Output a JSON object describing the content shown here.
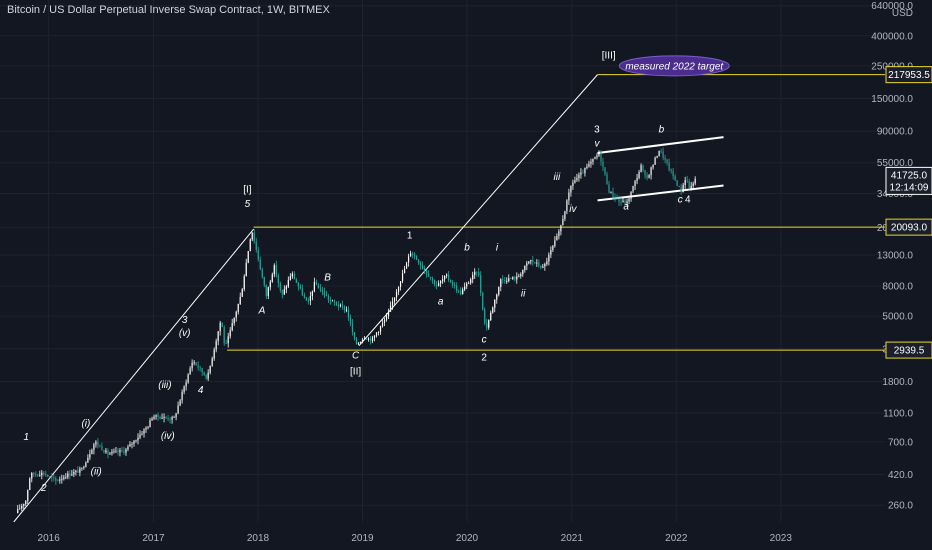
{
  "chart_data": {
    "type": "candlestick",
    "title": "Bitcoin / US Dollar Perpetual Inverse Swap Contract, 1W, BITMEX",
    "y_scale": "log",
    "currency": "USD",
    "ylim": [
      200,
      700000
    ],
    "xlim": [
      "2015-07-15",
      "2023-12-31"
    ],
    "x_ticks": [
      "2016",
      "2017",
      "2018",
      "2019",
      "2020",
      "2021",
      "2022",
      "2023"
    ],
    "y_ticks": [
      "640000.0",
      "400000.0",
      "250000.0",
      "150000.0",
      "90000.0",
      "55000.0",
      "34000.0",
      "20000.0",
      "13000.0",
      "8000.0",
      "5000.0",
      "3000.0",
      "1800.0",
      "1100.0",
      "700.0",
      "420.0",
      "260.0"
    ],
    "price_path": [
      [
        "2015-09-15",
        230
      ],
      [
        "2015-10-20",
        280
      ],
      [
        "2015-11-05",
        420
      ],
      [
        "2015-12-20",
        430
      ],
      [
        "2016-02-01",
        380
      ],
      [
        "2016-03-15",
        420
      ],
      [
        "2016-05-01",
        450
      ],
      [
        "2016-06-18",
        700
      ],
      [
        "2016-08-01",
        580
      ],
      [
        "2016-10-01",
        610
      ],
      [
        "2016-12-20",
        900
      ],
      [
        "2017-01-05",
        1050
      ],
      [
        "2017-03-20",
        1000
      ],
      [
        "2017-05-25",
        2500
      ],
      [
        "2017-07-15",
        1900
      ],
      [
        "2017-09-01",
        4800
      ],
      [
        "2017-09-15",
        3000
      ],
      [
        "2017-11-10",
        7000
      ],
      [
        "2017-12-17",
        19500
      ],
      [
        "2018-02-06",
        6900
      ],
      [
        "2018-03-05",
        11000
      ],
      [
        "2018-04-01",
        6800
      ],
      [
        "2018-05-05",
        9800
      ],
      [
        "2018-07-01",
        6000
      ],
      [
        "2018-07-25",
        8400
      ],
      [
        "2018-09-15",
        6400
      ],
      [
        "2018-11-14",
        5500
      ],
      [
        "2018-12-15",
        3200
      ],
      [
        "2019-01-15",
        3600
      ],
      [
        "2019-02-10",
        3450
      ],
      [
        "2019-04-05",
        5000
      ],
      [
        "2019-06-26",
        13800
      ],
      [
        "2019-08-15",
        10200
      ],
      [
        "2019-09-25",
        8000
      ],
      [
        "2019-10-27",
        9400
      ],
      [
        "2019-12-15",
        7100
      ],
      [
        "2020-02-15",
        10400
      ],
      [
        "2020-03-13",
        4000
      ],
      [
        "2020-05-05",
        8800
      ],
      [
        "2020-07-01",
        9100
      ],
      [
        "2020-08-15",
        12000
      ],
      [
        "2020-10-01",
        10600
      ],
      [
        "2020-11-25",
        18500
      ],
      [
        "2021-01-08",
        40000
      ],
      [
        "2021-02-10",
        46000
      ],
      [
        "2021-04-14",
        64000
      ],
      [
        "2021-05-19",
        35000
      ],
      [
        "2021-06-22",
        30000
      ],
      [
        "2021-07-20",
        29500
      ],
      [
        "2021-09-07",
        52000
      ],
      [
        "2021-09-25",
        42000
      ],
      [
        "2021-11-10",
        68000
      ],
      [
        "2022-01-24",
        35000
      ],
      [
        "2022-02-10",
        44000
      ],
      [
        "2022-02-24",
        36000
      ],
      [
        "2022-03-10",
        41725
      ]
    ],
    "horizontal_levels": [
      {
        "value": 217953.5,
        "label": "217953.5",
        "from": "2021-04-01"
      },
      {
        "value": 20093.0,
        "label": "20093.0",
        "from": "2017-12-17"
      },
      {
        "value": 2939.5,
        "label": "2939.5",
        "from": "2017-09-15"
      }
    ],
    "current_price": {
      "value": 41725.0,
      "label": "41725.0",
      "countdown": "12:14:09"
    },
    "trend_lines": [
      [
        [
          "2015-09-01",
          200
        ],
        [
          "2017-12-17",
          19500
        ]
      ],
      [
        [
          "2018-12-20",
          3150
        ],
        [
          "2021-04-01",
          217953.5
        ]
      ]
    ],
    "channel_lines": [
      [
        [
          "2021-04-01",
          64000
        ],
        [
          "2022-06-15",
          82000
        ]
      ],
      [
        [
          "2021-04-01",
          30500
        ],
        [
          "2022-06-15",
          38500
        ]
      ]
    ],
    "wave_labels": [
      {
        "text": "1",
        "x": "2015-10-15",
        "y": 720,
        "style": "italic"
      },
      {
        "text": "2",
        "x": "2015-12-15",
        "y": 325,
        "style": "italic"
      },
      {
        "text": "(i)",
        "x": "2016-05-10",
        "y": 890,
        "style": "italic"
      },
      {
        "text": "(ii)",
        "x": "2016-06-15",
        "y": 420,
        "style": "italic"
      },
      {
        "text": "(iii)",
        "x": "2017-02-10",
        "y": 1620,
        "style": "italic"
      },
      {
        "text": "(iv)",
        "x": "2017-02-20",
        "y": 730,
        "style": "italic"
      },
      {
        "text": "3",
        "x": "2017-04-20",
        "y": 4500,
        "style": "italic"
      },
      {
        "text": "(v)",
        "x": "2017-04-20",
        "y": 3650,
        "style": "italic"
      },
      {
        "text": "4",
        "x": "2017-06-15",
        "y": 1500,
        "style": "italic"
      },
      {
        "text": "[I]",
        "x": "2017-11-25",
        "y": 34500,
        "style": "normal"
      },
      {
        "text": "5",
        "x": "2017-11-25",
        "y": 27500,
        "style": "italic"
      },
      {
        "text": "A",
        "x": "2018-01-15",
        "y": 5200,
        "style": "italic"
      },
      {
        "text": "B",
        "x": "2018-09-01",
        "y": 8700,
        "style": "italic"
      },
      {
        "text": "C",
        "x": "2018-12-08",
        "y": 2580,
        "style": "italic"
      },
      {
        "text": "[II]",
        "x": "2018-12-08",
        "y": 2000,
        "style": "normal"
      },
      {
        "text": "1",
        "x": "2019-06-15",
        "y": 16800,
        "style": "normal"
      },
      {
        "text": "a",
        "x": "2019-10-01",
        "y": 6000,
        "style": "italic"
      },
      {
        "text": "b",
        "x": "2020-01-01",
        "y": 13900,
        "style": "italic"
      },
      {
        "text": "i",
        "x": "2020-04-15",
        "y": 13900,
        "style": "italic"
      },
      {
        "text": "ii",
        "x": "2020-07-15",
        "y": 6800,
        "style": "italic"
      },
      {
        "text": "c",
        "x": "2020-03-01",
        "y": 3300,
        "style": "italic"
      },
      {
        "text": "2",
        "x": "2020-03-01",
        "y": 2500,
        "style": "normal"
      },
      {
        "text": "iii",
        "x": "2020-11-10",
        "y": 42000,
        "style": "italic"
      },
      {
        "text": "iv",
        "x": "2021-01-05",
        "y": 25500,
        "style": "italic"
      },
      {
        "text": "3",
        "x": "2021-03-30",
        "y": 88000,
        "style": "normal"
      },
      {
        "text": "v",
        "x": "2021-03-30",
        "y": 71000,
        "style": "italic"
      },
      {
        "text": "a",
        "x": "2021-07-10",
        "y": 26500,
        "style": "italic"
      },
      {
        "text": "b",
        "x": "2021-11-10",
        "y": 88000,
        "style": "italic"
      },
      {
        "text": "c",
        "x": "2022-01-15",
        "y": 29500,
        "style": "italic"
      },
      {
        "text": "4",
        "x": "2022-02-10",
        "y": 29500,
        "style": "normal"
      },
      {
        "text": "[III]",
        "x": "2021-05-10",
        "y": 280000,
        "style": "normal"
      }
    ],
    "callout": {
      "text": "measured 2022 target",
      "x": "2021-12-25",
      "y": 250000
    },
    "colors": {
      "background": "#131722",
      "candle_up": "#ffffff",
      "candle_down": "#26a69a",
      "level": "#e6d82e",
      "trend": "#ffffff",
      "text": "#d1d4dc",
      "axis_text": "#b2b5be",
      "label_bg": "#1b1f2c",
      "callout_bg": "#4b2c8f"
    }
  }
}
